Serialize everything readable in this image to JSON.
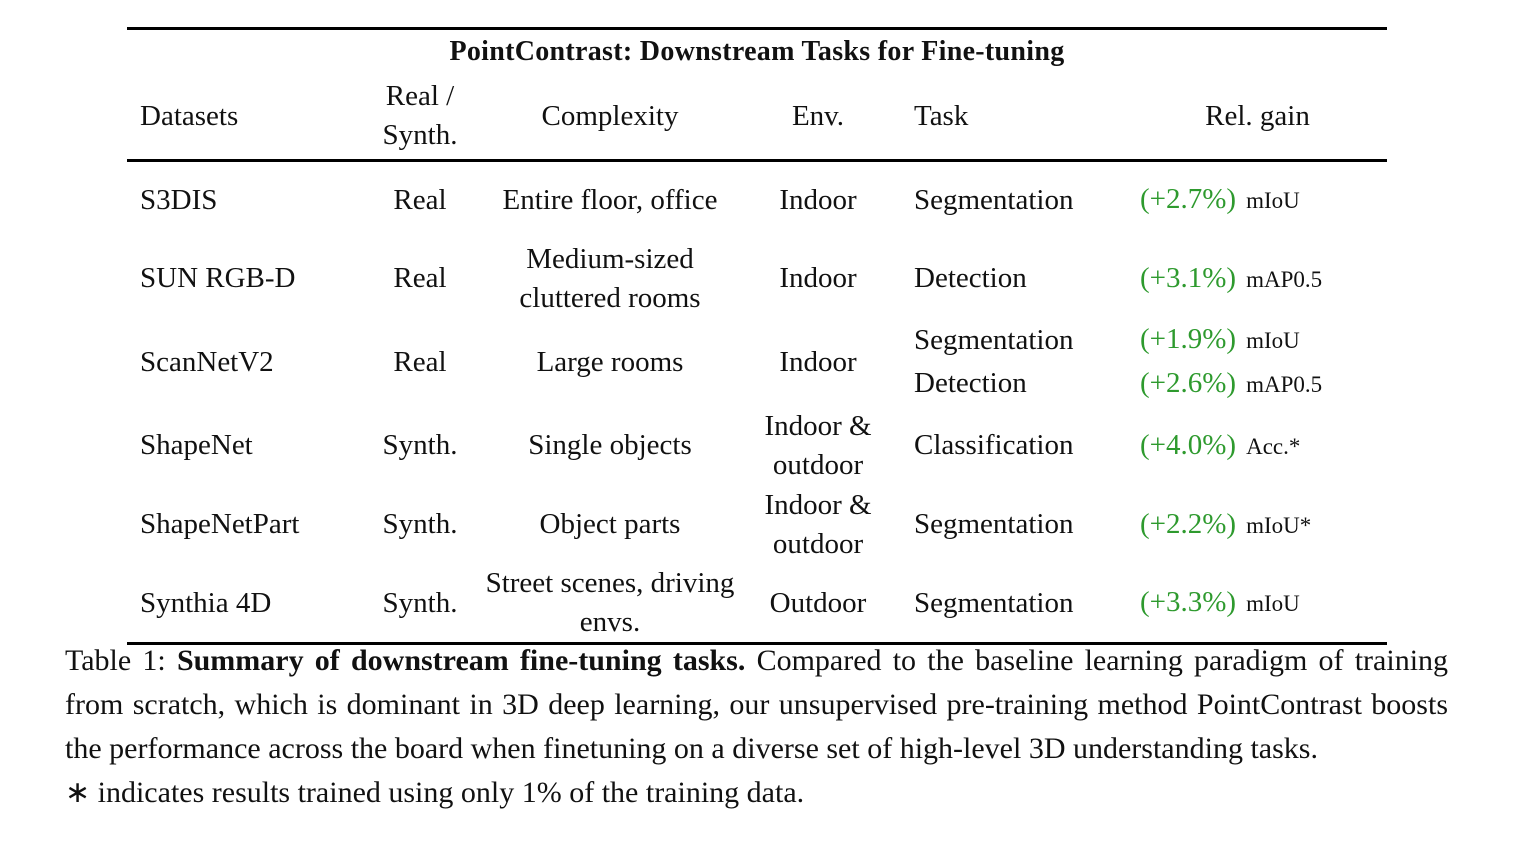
{
  "table": {
    "title": "PointContrast: Downstream Tasks for Fine-tuning",
    "header": [
      "Datasets",
      "Real / Synth.",
      "Complexity",
      "Env.",
      "Task",
      "Rel. gain"
    ],
    "rows": [
      {
        "dataset": "S3DIS",
        "real_synth": "Real",
        "complexity": "Entire floor, office",
        "env": "Indoor",
        "tasks": [
          {
            "task": "Segmentation",
            "gain": "(+2.7%)",
            "metric": "mIoU"
          }
        ]
      },
      {
        "dataset": "SUN RGB-D",
        "real_synth": "Real",
        "complexity": "Medium-sized cluttered rooms",
        "env": "Indoor",
        "tasks": [
          {
            "task": "Detection",
            "gain": "(+3.1%)",
            "metric": "mAP0.5"
          }
        ]
      },
      {
        "dataset": "ScanNetV2",
        "real_synth": "Real",
        "complexity": "Large rooms",
        "env": "Indoor",
        "tasks": [
          {
            "task": "Segmentation",
            "gain": "(+1.9%)",
            "metric": "mIoU"
          },
          {
            "task": "Detection",
            "gain": "(+2.6%)",
            "metric": "mAP0.5"
          }
        ]
      },
      {
        "dataset": "ShapeNet",
        "real_synth": "Synth.",
        "complexity": "Single objects",
        "env": "Indoor & outdoor",
        "tasks": [
          {
            "task": "Classification",
            "gain": "(+4.0%)",
            "metric": "Acc.*"
          }
        ]
      },
      {
        "dataset": "ShapeNetPart",
        "real_synth": "Synth.",
        "complexity": "Object parts",
        "env": "Indoor & outdoor",
        "tasks": [
          {
            "task": "Segmentation",
            "gain": "(+2.2%)",
            "metric": "mIoU*"
          }
        ]
      },
      {
        "dataset": "Synthia 4D",
        "real_synth": "Synth.",
        "complexity": "Street scenes, driving envs.",
        "env": "Outdoor",
        "tasks": [
          {
            "task": "Segmentation",
            "gain": "(+3.3%)",
            "metric": "mIoU"
          }
        ]
      }
    ]
  },
  "caption": {
    "label": "Table 1:",
    "bold": "Summary of downstream fine-tuning tasks.",
    "text": "Compared to the baseline learning paradigm of training from scratch, which is dominant in 3D deep learning, our unsupervised pre-training method PointContrast boosts the performance across the board when finetuning on a diverse set of high-level 3D understanding tasks.",
    "note": "∗ indicates results trained using only 1% of the training data."
  }
}
